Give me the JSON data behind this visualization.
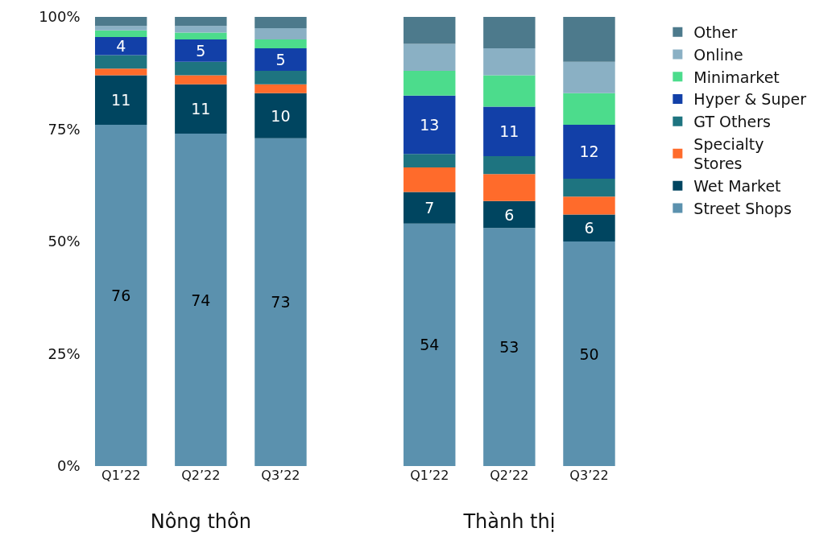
{
  "chart_data": [
    {
      "type": "bar",
      "stacked": true,
      "xlabel": "Nông thôn",
      "categories": [
        "Q1’22",
        "Q2’22",
        "Q3’22"
      ],
      "ylim": [
        0,
        100
      ],
      "yticks": [
        {
          "value": 0,
          "label": "0%"
        },
        {
          "value": 25,
          "label": "25%"
        },
        {
          "value": 50,
          "label": "50%"
        },
        {
          "value": 75,
          "label": "75%"
        },
        {
          "value": 100,
          "label": "100%"
        }
      ],
      "legend": false,
      "series": [
        {
          "color": "#5b91ae",
          "values": [
            76,
            74,
            73
          ],
          "value_labels": [
            "76",
            "74",
            "73"
          ]
        },
        {
          "color": "#004560",
          "values": [
            11,
            11,
            10
          ],
          "value_labels": [
            "11",
            "11",
            "10"
          ]
        },
        {
          "color": "#ff6b2b",
          "values": [
            1.5,
            2,
            2
          ]
        },
        {
          "color": "#1e7480",
          "values": [
            3,
            3,
            3
          ]
        },
        {
          "color": "#1240a8",
          "values": [
            4,
            5,
            5
          ],
          "value_labels": [
            "4",
            "5",
            "5"
          ]
        },
        {
          "color": "#4cdc8c",
          "values": [
            1.5,
            1.5,
            2
          ]
        },
        {
          "color": "#8ab0c4",
          "values": [
            1,
            1.5,
            2.5
          ]
        },
        {
          "color": "#4d7a8c",
          "values": [
            2,
            2,
            2.5
          ]
        }
      ]
    },
    {
      "type": "bar",
      "stacked": true,
      "xlabel": "Thành thị",
      "categories": [
        "Q1’22",
        "Q2’22",
        "Q3’22"
      ],
      "ylim": [
        0,
        100
      ],
      "tick_labels": "x",
      "legend": "right",
      "series": [
        {
          "name": "Street Shops",
          "color": "#5b91ae",
          "values": [
            54,
            53,
            50
          ],
          "value_labels": [
            "54",
            "53",
            "50"
          ]
        },
        {
          "name": "Wet Market",
          "color": "#004560",
          "values": [
            7,
            6,
            6
          ],
          "value_labels": [
            "7",
            "6",
            "6"
          ]
        },
        {
          "name": "Specialty Stores",
          "color": "#ff6b2b",
          "values": [
            5.5,
            6,
            4
          ]
        },
        {
          "name": "GT Others",
          "color": "#1e7480",
          "values": [
            3,
            4,
            4
          ]
        },
        {
          "name": "Hyper & Super",
          "color": "#1240a8",
          "values": [
            13,
            11,
            12
          ],
          "value_labels": [
            "13",
            "11",
            "12"
          ]
        },
        {
          "name": "Minimarket",
          "color": "#4cdc8c",
          "values": [
            5.5,
            7,
            7
          ]
        },
        {
          "name": "Online",
          "color": "#8ab0c4",
          "values": [
            6,
            6,
            7
          ]
        },
        {
          "name": "Other",
          "color": "#4d7a8c",
          "values": [
            6,
            7,
            10
          ]
        }
      ]
    }
  ]
}
